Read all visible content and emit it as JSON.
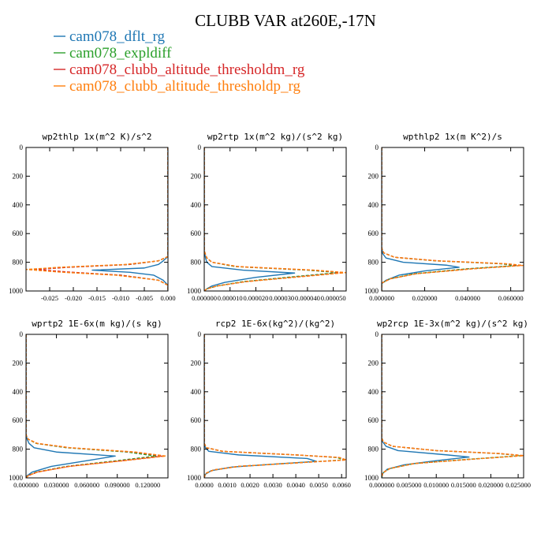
{
  "chart_data": {
    "title": "CLUBB VAR at260E,-17N",
    "type": "line",
    "legend_placement": "top-left",
    "series": [
      {
        "name": "cam078_dflt_rg",
        "color": "#1f77b4"
      },
      {
        "name": "cam078_expldiff",
        "color": "#2ca02c"
      },
      {
        "name": "cam078_clubb_altitude_thresholdm_rg",
        "color": "#d62728"
      },
      {
        "name": "cam078_clubb_altitude_thresholdp_rg",
        "color": "#ff7f0e"
      }
    ],
    "panels": [
      {
        "title": "wp2thlp  1x(m^2 K)/s^2",
        "xlim": [
          -0.03,
          0.0
        ],
        "xticks": [
          "-0.025",
          "-0.020",
          "-0.015",
          "-0.010",
          "-0.005",
          "0.000"
        ],
        "xtick_values": [
          -0.025,
          -0.02,
          -0.015,
          -0.01,
          -0.005,
          0.0
        ],
        "ylim": [
          0,
          1000
        ],
        "yticks": [
          "0",
          "200",
          "400",
          "600",
          "800",
          "1000"
        ],
        "profiles": [
          {
            "y": [
              0,
              700,
              760,
              790,
              815,
              840,
              855,
              870,
              890,
              925,
              960,
              1000
            ],
            "x": [
              0,
              0,
              0,
              -0.001,
              -0.002,
              -0.005,
              -0.016,
              -0.008,
              -0.003,
              -0.001,
              0,
              0
            ]
          },
          {
            "y": [
              0,
              700,
              760,
              790,
              815,
              835,
              850,
              868,
              890,
              925,
              960,
              1000
            ],
            "x": [
              0,
              0,
              0,
              -0.002,
              -0.008,
              -0.022,
              -0.029,
              -0.022,
              -0.01,
              -0.002,
              0,
              0
            ]
          },
          {
            "y": [
              0,
              700,
              760,
              790,
              815,
              835,
              850,
              868,
              890,
              925,
              960,
              1000
            ],
            "x": [
              0,
              0,
              0,
              -0.002,
              -0.008,
              -0.021,
              -0.028,
              -0.021,
              -0.01,
              -0.002,
              0,
              0
            ]
          },
          {
            "y": [
              0,
              700,
              760,
              790,
              815,
              835,
              850,
              868,
              890,
              925,
              960,
              1000
            ],
            "x": [
              0,
              0,
              0,
              -0.002,
              -0.009,
              -0.023,
              -0.03,
              -0.023,
              -0.011,
              -0.002,
              0,
              0
            ]
          }
        ]
      },
      {
        "title": "wp2rtp  1x(m^2 kg)/(s^2 kg)",
        "xlim": [
          0,
          5.5e-05
        ],
        "xticks": [
          "0.000000",
          "0.000010",
          "0.000020",
          "0.000030",
          "0.000040",
          "0.000050"
        ],
        "xtick_values": [
          0,
          1e-05,
          2e-05,
          3e-05,
          4e-05,
          5e-05
        ],
        "ylim": [
          0,
          1000
        ],
        "yticks": [
          "0",
          "200",
          "400",
          "600",
          "800",
          "1000"
        ],
        "profiles": [
          {
            "y": [
              0,
              720,
              770,
              800,
              830,
              855,
              875,
              905,
              940,
              965,
              985,
              1000
            ],
            "x": [
              0,
              0,
              5e-07,
              1e-06,
              3e-06,
              1.5e-05,
              3.5e-05,
              2e-05,
              8e-06,
              3e-06,
              1e-06,
              0
            ]
          },
          {
            "y": [
              0,
              720,
              770,
              800,
              830,
              855,
              872,
              900,
              935,
              965,
              985,
              1000
            ],
            "x": [
              0,
              0,
              1e-06,
              3e-06,
              1.2e-05,
              4e-05,
              5.2e-05,
              3.5e-05,
              1.5e-05,
              5e-06,
              1e-06,
              0
            ]
          },
          {
            "y": [
              0,
              720,
              770,
              800,
              830,
              855,
              872,
              900,
              935,
              965,
              985,
              1000
            ],
            "x": [
              0,
              0,
              1e-06,
              3e-06,
              1.3e-05,
              4.2e-05,
              5.4e-05,
              3.7e-05,
              1.6e-05,
              5e-06,
              1e-06,
              0
            ]
          },
          {
            "y": [
              0,
              720,
              770,
              800,
              830,
              855,
              872,
              900,
              935,
              965,
              985,
              1000
            ],
            "x": [
              0,
              0,
              1e-06,
              3e-06,
              1.3e-05,
              4.3e-05,
              5.5e-05,
              3.8e-05,
              1.6e-05,
              5e-06,
              1e-06,
              0
            ]
          }
        ]
      },
      {
        "title": "wpthlp2  1x(m K^2)/s",
        "xlim": [
          0,
          0.066
        ],
        "xticks": [
          "0.000000",
          "0.020000",
          "0.040000",
          "0.060000"
        ],
        "xtick_values": [
          0,
          0.02,
          0.04,
          0.06
        ],
        "ylim": [
          0,
          1000
        ],
        "yticks": [
          "0",
          "200",
          "400",
          "600",
          "800",
          "1000"
        ],
        "profiles": [
          {
            "y": [
              0,
              700,
              740,
              770,
              800,
              820,
              835,
              860,
              890,
              925,
              950,
              1000
            ],
            "x": [
              0,
              0,
              0.0005,
              0.002,
              0.01,
              0.03,
              0.036,
              0.02,
              0.008,
              0.002,
              0,
              0
            ]
          },
          {
            "y": [
              0,
              700,
              735,
              765,
              790,
              810,
              822,
              845,
              880,
              915,
              945,
              1000
            ],
            "x": [
              0,
              0,
              0.001,
              0.006,
              0.025,
              0.055,
              0.063,
              0.04,
              0.015,
              0.004,
              0,
              0
            ]
          },
          {
            "y": [
              0,
              700,
              735,
              765,
              790,
              810,
              822,
              845,
              880,
              915,
              945,
              1000
            ],
            "x": [
              0,
              0,
              0.001,
              0.006,
              0.026,
              0.057,
              0.065,
              0.042,
              0.016,
              0.004,
              0,
              0
            ]
          },
          {
            "y": [
              0,
              700,
              735,
              765,
              790,
              810,
              822,
              845,
              880,
              915,
              945,
              1000
            ],
            "x": [
              0,
              0,
              0.001,
              0.006,
              0.026,
              0.058,
              0.066,
              0.043,
              0.016,
              0.004,
              0,
              0
            ]
          }
        ]
      },
      {
        "title": "wprtp2  1E-6x(m kg)/(s kg)",
        "xlim": [
          0,
          0.14
        ],
        "xticks": [
          "0.000000",
          "0.030000",
          "0.060000",
          "0.090000",
          "0.120000"
        ],
        "xtick_values": [
          0,
          0.03,
          0.06,
          0.09,
          0.12
        ],
        "ylim": [
          0,
          1000
        ],
        "yticks": [
          "0",
          "200",
          "400",
          "600",
          "800",
          "1000"
        ],
        "profiles": [
          {
            "y": [
              0,
              700,
              730,
              760,
              790,
              820,
              848,
              880,
              920,
              960,
              985,
              1000
            ],
            "x": [
              0,
              0,
              0.001,
              0.003,
              0.008,
              0.03,
              0.088,
              0.06,
              0.025,
              0.006,
              0.001,
              0
            ]
          },
          {
            "y": [
              0,
              700,
              730,
              760,
              790,
              820,
              848,
              880,
              920,
              960,
              985,
              1000
            ],
            "x": [
              0,
              0,
              0.002,
              0.01,
              0.04,
              0.1,
              0.128,
              0.09,
              0.04,
              0.01,
              0.002,
              0
            ]
          },
          {
            "y": [
              0,
              700,
              730,
              760,
              790,
              820,
              848,
              880,
              920,
              960,
              985,
              1000
            ],
            "x": [
              0,
              0,
              0.002,
              0.011,
              0.043,
              0.106,
              0.135,
              0.095,
              0.042,
              0.011,
              0.002,
              0
            ]
          },
          {
            "y": [
              0,
              700,
              730,
              760,
              790,
              820,
              848,
              880,
              920,
              960,
              985,
              1000
            ],
            "x": [
              0,
              0,
              0.002,
              0.011,
              0.044,
              0.108,
              0.138,
              0.097,
              0.043,
              0.011,
              0.002,
              0
            ]
          }
        ]
      },
      {
        "title": "rcp2  1E-6x(kg^2)/(kg^2)",
        "xlim": [
          0,
          0.0062
        ],
        "xticks": [
          "0.0000",
          "0.0010",
          "0.0020",
          "0.0030",
          "0.0040",
          "0.0050",
          "0.0060"
        ],
        "xtick_values": [
          0,
          0.001,
          0.002,
          0.003,
          0.004,
          0.005,
          0.006
        ],
        "ylim": [
          0,
          1000
        ],
        "yticks": [
          "0",
          "200",
          "400",
          "600",
          "800",
          "1000"
        ],
        "profiles": [
          {
            "y": [
              0,
              760,
              790,
              815,
              840,
              865,
              885,
              905,
              925,
              950,
              975,
              1000
            ],
            "x": [
              0,
              0,
              5e-05,
              0.0002,
              0.0015,
              0.0045,
              0.0049,
              0.003,
              0.0012,
              0.0003,
              5e-05,
              0
            ]
          },
          {
            "y": [
              0,
              760,
              790,
              815,
              840,
              858,
              875,
              895,
              920,
              945,
              970,
              1000
            ],
            "x": [
              0,
              0,
              0.0001,
              0.0008,
              0.004,
              0.0058,
              0.0061,
              0.004,
              0.0015,
              0.0004,
              5e-05,
              0
            ]
          },
          {
            "y": [
              0,
              760,
              790,
              815,
              840,
              858,
              875,
              895,
              920,
              945,
              970,
              1000
            ],
            "x": [
              0,
              0,
              0.0001,
              0.0008,
              0.004,
              0.0059,
              0.0062,
              0.0041,
              0.0015,
              0.0004,
              5e-05,
              0
            ]
          },
          {
            "y": [
              0,
              760,
              790,
              815,
              840,
              858,
              875,
              895,
              920,
              945,
              970,
              1000
            ],
            "x": [
              0,
              0,
              0.0001,
              0.0008,
              0.004,
              0.0059,
              0.0062,
              0.0041,
              0.0015,
              0.0004,
              5e-05,
              0
            ]
          }
        ]
      },
      {
        "title": "wp2rcp  1E-3x(m^2 kg)/(s^2 kg)",
        "xlim": [
          0,
          0.026
        ],
        "xticks": [
          "0.000000",
          "0.005000",
          "0.010000",
          "0.015000",
          "0.020000",
          "0.025000"
        ],
        "xtick_values": [
          0,
          0.005,
          0.01,
          0.015,
          0.02,
          0.025
        ],
        "ylim": [
          0,
          1000
        ],
        "yticks": [
          "0",
          "200",
          "400",
          "600",
          "800",
          "1000"
        ],
        "profiles": [
          {
            "y": [
              0,
              720,
              750,
              780,
              810,
              840,
              855,
              880,
              910,
              940,
              970,
              1000
            ],
            "x": [
              0,
              0,
              0.0002,
              0.0008,
              0.003,
              0.012,
              0.016,
              0.01,
              0.004,
              0.001,
              0.0002,
              0
            ]
          },
          {
            "y": [
              0,
              720,
              750,
              780,
              810,
              830,
              845,
              870,
              900,
              935,
              965,
              1000
            ],
            "x": [
              0,
              0,
              0.0003,
              0.002,
              0.01,
              0.021,
              0.0255,
              0.016,
              0.006,
              0.0015,
              0.0002,
              0
            ]
          },
          {
            "y": [
              0,
              720,
              750,
              780,
              810,
              830,
              845,
              870,
              900,
              935,
              965,
              1000
            ],
            "x": [
              0,
              0,
              0.0003,
              0.002,
              0.01,
              0.0215,
              0.026,
              0.0165,
              0.006,
              0.0015,
              0.0002,
              0
            ]
          },
          {
            "y": [
              0,
              720,
              750,
              780,
              810,
              830,
              845,
              870,
              900,
              935,
              965,
              1000
            ],
            "x": [
              0,
              0,
              0.0003,
              0.002,
              0.01,
              0.0215,
              0.026,
              0.0165,
              0.006,
              0.0015,
              0.0002,
              0
            ]
          }
        ]
      }
    ]
  }
}
